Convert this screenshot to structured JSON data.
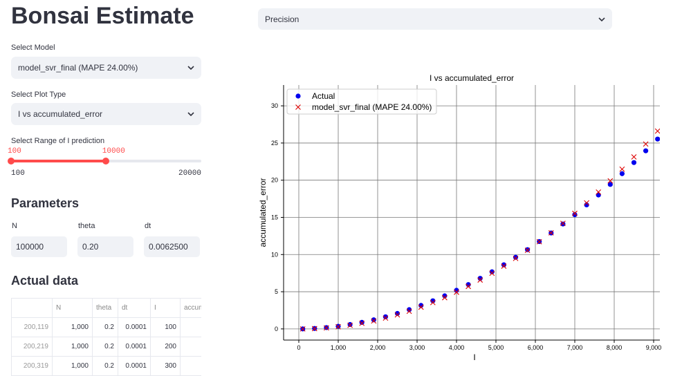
{
  "header": {
    "title": "Bonsai Estimate"
  },
  "controls": {
    "model_label": "Select Model",
    "model_value": "model_svr_final (MAPE 24.00%)",
    "plot_label": "Select Plot Type",
    "plot_value": "I vs accumulated_error",
    "range_label": "Select Range of I prediction",
    "slider": {
      "low": 100,
      "high": 10000,
      "min": 100,
      "max": 20000
    },
    "view_value": "Precision"
  },
  "parameters": {
    "title": "Parameters",
    "fields": [
      {
        "label": "N",
        "value": "100000"
      },
      {
        "label": "theta",
        "value": "0.20"
      },
      {
        "label": "dt",
        "value": "0.0062500"
      }
    ]
  },
  "table": {
    "title": "Actual data",
    "columns": [
      "N",
      "theta",
      "dt",
      "I",
      "accumulated_error"
    ],
    "rows": [
      [
        "200,119",
        "1,000",
        "0.2",
        "0.0001",
        "100"
      ],
      [
        "200,219",
        "1,000",
        "0.2",
        "0.0001",
        "200"
      ],
      [
        "200,319",
        "1,000",
        "0.2",
        "0.0001",
        "300"
      ]
    ]
  },
  "chart_data": {
    "type": "scatter",
    "title": "I vs accumulated_error",
    "x_label": "I",
    "y_label": "accumulated_error",
    "xlim": [
      -386,
      9158
    ],
    "ylim": [
      -1.5,
      32.8
    ],
    "xticks": [
      0,
      {
        "value": 1000,
        "label": "1,000"
      },
      {
        "value": 2000,
        "label": "2,000"
      },
      {
        "value": 3000,
        "label": "3,000"
      },
      {
        "value": 4000,
        "label": "4,000"
      },
      {
        "value": 5000,
        "label": "5,000"
      },
      {
        "value": 6000,
        "label": "6,000"
      },
      {
        "value": 7000,
        "label": "7,000"
      },
      {
        "value": 8000,
        "label": "8,000"
      },
      {
        "value": 9000,
        "label": "9,000"
      }
    ],
    "yticks": [
      0,
      5,
      10,
      15,
      20,
      25,
      30
    ],
    "grid": true,
    "legend": "upper left",
    "x": [
      100,
      400,
      700,
      1000,
      1300,
      1600,
      1900,
      2200,
      2500,
      2800,
      3100,
      3400,
      3700,
      4000,
      4300,
      4600,
      4900,
      5200,
      5500,
      5800,
      6100,
      6400,
      6700,
      7000,
      7300,
      7600,
      7900,
      8200,
      8500,
      8800,
      9100
    ],
    "series": [
      {
        "name": "Actual",
        "color": "#0000ee",
        "marker": "circle",
        "values": [
          0.0,
          0.06,
          0.18,
          0.35,
          0.59,
          0.88,
          1.22,
          1.63,
          2.08,
          2.59,
          3.16,
          3.78,
          4.45,
          5.19,
          5.96,
          6.8,
          7.68,
          8.62,
          9.63,
          10.66,
          11.75,
          12.9,
          14.11,
          15.36,
          16.68,
          18.01,
          19.43,
          20.88,
          22.37,
          23.95,
          25.53
        ]
      },
      {
        "name": "model_svr_final (MAPE 24.00%)",
        "color": "#dd0000",
        "marker": "x",
        "values": [
          0.0,
          0.04,
          0.14,
          0.29,
          0.49,
          0.75,
          1.07,
          1.45,
          1.88,
          2.37,
          2.92,
          3.54,
          4.2,
          4.93,
          5.71,
          6.57,
          7.48,
          8.44,
          9.48,
          10.57,
          11.72,
          12.92,
          14.2,
          15.54,
          16.95,
          18.4,
          19.91,
          21.48,
          23.13,
          24.86,
          26.61
        ]
      }
    ]
  }
}
